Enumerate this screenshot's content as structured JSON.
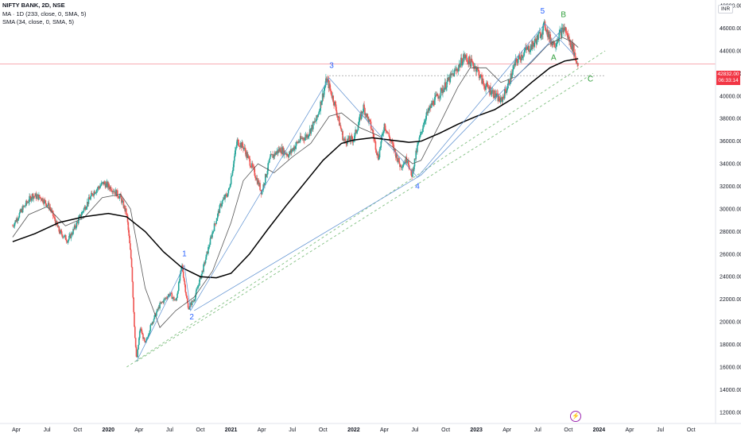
{
  "legend": {
    "symbol": "NIFTY BANK, 2D, NSE",
    "ma_label": "MA · 1D (233, close, 0, SMA, 5)",
    "sma_label": "SMA (34, close, 0, SMA, 5)"
  },
  "currency_label": "INR",
  "last_price": {
    "value": "42832.00",
    "countdown": "06:33:14",
    "color": "#f23645"
  },
  "colors": {
    "up": "#26a69a",
    "down": "#ef5350",
    "ma233": "#000000",
    "sma34": "#555555",
    "wave": "#5b8fd0",
    "trend": "#7fbf7f"
  },
  "chart_data": {
    "type": "candlestick",
    "x_range": [
      "2019-03",
      "2024-11"
    ],
    "ylim": [
      11000,
      48500
    ],
    "y_ticks": [
      12000,
      14000,
      16000,
      18000,
      20000,
      22000,
      24000,
      26000,
      28000,
      30000,
      32000,
      34000,
      36000,
      38000,
      40000,
      42000,
      44000,
      46000,
      48000
    ],
    "y_tick_labels": [
      "12000.00",
      "14000.00",
      "16000.00",
      "18000.00",
      "20000.00",
      "22000.00",
      "24000.00",
      "26000.00",
      "28000.00",
      "30000.00",
      "32000.00",
      "34000.00",
      "36000.00",
      "38000.00",
      "40000.00",
      "42000.00",
      "44000.00",
      "46000.00",
      "48000.00"
    ],
    "x_ticks": [
      {
        "label": "Apr",
        "t": 2019.25,
        "bold": false
      },
      {
        "label": "Jul",
        "t": 2019.5,
        "bold": false
      },
      {
        "label": "Oct",
        "t": 2019.75,
        "bold": false
      },
      {
        "label": "2020",
        "t": 2020.0,
        "bold": true
      },
      {
        "label": "Apr",
        "t": 2020.25,
        "bold": false
      },
      {
        "label": "Jul",
        "t": 2020.5,
        "bold": false
      },
      {
        "label": "Oct",
        "t": 2020.75,
        "bold": false
      },
      {
        "label": "2021",
        "t": 2021.0,
        "bold": true
      },
      {
        "label": "Apr",
        "t": 2021.25,
        "bold": false
      },
      {
        "label": "Jul",
        "t": 2021.5,
        "bold": false
      },
      {
        "label": "Oct",
        "t": 2021.75,
        "bold": false
      },
      {
        "label": "2022",
        "t": 2022.0,
        "bold": true
      },
      {
        "label": "Apr",
        "t": 2022.25,
        "bold": false
      },
      {
        "label": "Jul",
        "t": 2022.5,
        "bold": false
      },
      {
        "label": "Oct",
        "t": 2022.75,
        "bold": false
      },
      {
        "label": "2023",
        "t": 2023.0,
        "bold": true
      },
      {
        "label": "Apr",
        "t": 2023.25,
        "bold": false
      },
      {
        "label": "Jul",
        "t": 2023.5,
        "bold": false
      },
      {
        "label": "Oct",
        "t": 2023.75,
        "bold": false
      },
      {
        "label": "2024",
        "t": 2024.0,
        "bold": true
      },
      {
        "label": "Apr",
        "t": 2024.25,
        "bold": false
      },
      {
        "label": "Jul",
        "t": 2024.5,
        "bold": false
      },
      {
        "label": "Oct",
        "t": 2024.75,
        "bold": false
      }
    ],
    "price_path": [
      [
        2019.22,
        28500
      ],
      [
        2019.3,
        30000
      ],
      [
        2019.38,
        31200
      ],
      [
        2019.45,
        31000
      ],
      [
        2019.52,
        30200
      ],
      [
        2019.6,
        28000
      ],
      [
        2019.67,
        27200
      ],
      [
        2019.72,
        28200
      ],
      [
        2019.8,
        30000
      ],
      [
        2019.88,
        31500
      ],
      [
        2019.96,
        32300
      ],
      [
        2020.03,
        31800
      ],
      [
        2020.1,
        31000
      ],
      [
        2020.15,
        29500
      ],
      [
        2020.19,
        25000
      ],
      [
        2020.21,
        20000
      ],
      [
        2020.23,
        16500
      ],
      [
        2020.26,
        19500
      ],
      [
        2020.3,
        18000
      ],
      [
        2020.35,
        19800
      ],
      [
        2020.42,
        21500
      ],
      [
        2020.5,
        22500
      ],
      [
        2020.55,
        21800
      ],
      [
        2020.6,
        25000
      ],
      [
        2020.65,
        21200
      ],
      [
        2020.7,
        22000
      ],
      [
        2020.78,
        25000
      ],
      [
        2020.85,
        28000
      ],
      [
        2020.92,
        30500
      ],
      [
        2020.98,
        31500
      ],
      [
        2021.05,
        36000
      ],
      [
        2021.1,
        35500
      ],
      [
        2021.18,
        33500
      ],
      [
        2021.25,
        31500
      ],
      [
        2021.32,
        34500
      ],
      [
        2021.4,
        35300
      ],
      [
        2021.47,
        34800
      ],
      [
        2021.55,
        36000
      ],
      [
        2021.62,
        36500
      ],
      [
        2021.7,
        38000
      ],
      [
        2021.78,
        41500
      ],
      [
        2021.84,
        39500
      ],
      [
        2021.92,
        36000
      ],
      [
        2022.0,
        36200
      ],
      [
        2022.08,
        39000
      ],
      [
        2022.15,
        37000
      ],
      [
        2022.2,
        34500
      ],
      [
        2022.25,
        37500
      ],
      [
        2022.32,
        35500
      ],
      [
        2022.38,
        33800
      ],
      [
        2022.44,
        34500
      ],
      [
        2022.47,
        32800
      ],
      [
        2022.52,
        35500
      ],
      [
        2022.58,
        38000
      ],
      [
        2022.65,
        39500
      ],
      [
        2022.72,
        40500
      ],
      [
        2022.78,
        41500
      ],
      [
        2022.85,
        42500
      ],
      [
        2022.9,
        43500
      ],
      [
        2022.95,
        43000
      ],
      [
        2023.0,
        42500
      ],
      [
        2023.06,
        41000
      ],
      [
        2023.12,
        40500
      ],
      [
        2023.2,
        39500
      ],
      [
        2023.26,
        41000
      ],
      [
        2023.32,
        43000
      ],
      [
        2023.4,
        44000
      ],
      [
        2023.46,
        44500
      ],
      [
        2023.52,
        45500
      ],
      [
        2023.56,
        46300
      ],
      [
        2023.6,
        45000
      ],
      [
        2023.64,
        44600
      ],
      [
        2023.68,
        45500
      ],
      [
        2023.72,
        46000
      ],
      [
        2023.76,
        44800
      ],
      [
        2023.79,
        44200
      ],
      [
        2023.81,
        43200
      ],
      [
        2023.83,
        42832
      ]
    ],
    "ma233_path": [
      [
        2019.22,
        27100
      ],
      [
        2019.4,
        27800
      ],
      [
        2019.6,
        28800
      ],
      [
        2019.8,
        29300
      ],
      [
        2020.0,
        29600
      ],
      [
        2020.15,
        29300
      ],
      [
        2020.3,
        28000
      ],
      [
        2020.45,
        26200
      ],
      [
        2020.6,
        24800
      ],
      [
        2020.75,
        24000
      ],
      [
        2020.88,
        23900
      ],
      [
        2021.0,
        24300
      ],
      [
        2021.15,
        26000
      ],
      [
        2021.3,
        28200
      ],
      [
        2021.45,
        30300
      ],
      [
        2021.6,
        32300
      ],
      [
        2021.75,
        34300
      ],
      [
        2021.9,
        35800
      ],
      [
        2022.0,
        36100
      ],
      [
        2022.15,
        36300
      ],
      [
        2022.3,
        36100
      ],
      [
        2022.45,
        35900
      ],
      [
        2022.55,
        36000
      ],
      [
        2022.7,
        36700
      ],
      [
        2022.85,
        37500
      ],
      [
        2023.0,
        38200
      ],
      [
        2023.15,
        38800
      ],
      [
        2023.3,
        39800
      ],
      [
        2023.45,
        41200
      ],
      [
        2023.6,
        42500
      ],
      [
        2023.72,
        43100
      ],
      [
        2023.83,
        43300
      ]
    ],
    "sma34_path": [
      [
        2019.22,
        27500
      ],
      [
        2019.35,
        29500
      ],
      [
        2019.5,
        30200
      ],
      [
        2019.65,
        28500
      ],
      [
        2019.8,
        29200
      ],
      [
        2019.95,
        31000
      ],
      [
        2020.1,
        31300
      ],
      [
        2020.18,
        30000
      ],
      [
        2020.3,
        23000
      ],
      [
        2020.42,
        19500
      ],
      [
        2020.55,
        21000
      ],
      [
        2020.7,
        22200
      ],
      [
        2020.85,
        24500
      ],
      [
        2021.0,
        28800
      ],
      [
        2021.1,
        32500
      ],
      [
        2021.22,
        34000
      ],
      [
        2021.35,
        33200
      ],
      [
        2021.5,
        34600
      ],
      [
        2021.65,
        35800
      ],
      [
        2021.8,
        38200
      ],
      [
        2021.9,
        38500
      ],
      [
        2022.05,
        37200
      ],
      [
        2022.2,
        36500
      ],
      [
        2022.35,
        35200
      ],
      [
        2022.48,
        34000
      ],
      [
        2022.55,
        34300
      ],
      [
        2022.7,
        37500
      ],
      [
        2022.85,
        40800
      ],
      [
        2022.95,
        42500
      ],
      [
        2023.08,
        42500
      ],
      [
        2023.2,
        41200
      ],
      [
        2023.32,
        41700
      ],
      [
        2023.45,
        43000
      ],
      [
        2023.58,
        44500
      ],
      [
        2023.7,
        45200
      ],
      [
        2023.78,
        44800
      ],
      [
        2023.83,
        44300
      ]
    ],
    "wave_lines": [
      [
        [
          2020.23,
          16500
        ],
        [
          2020.62,
          25000
        ],
        [
          2020.67,
          21000
        ],
        [
          2021.8,
          41600
        ],
        [
          2022.52,
          32800
        ],
        [
          2023.56,
          46400
        ],
        [
          2023.8,
          43600
        ]
      ],
      [
        [
          2020.7,
          21000
        ],
        [
          2022.55,
          33000
        ],
        [
          2023.7,
          45900
        ]
      ]
    ],
    "trend_lines": [
      [
        [
          2020.15,
          16000
        ],
        [
          2024.05,
          44000
        ]
      ],
      [
        [
          2020.23,
          16500
        ],
        [
          2023.95,
          42000
        ]
      ]
    ],
    "dotted_level": {
      "y": 41800,
      "x_from": 2021.8,
      "x_to": 2024.05
    },
    "wave_labels": [
      {
        "text": "1",
        "t": 2020.62,
        "y": 25800,
        "color": "blue"
      },
      {
        "text": "2",
        "t": 2020.68,
        "y": 20200,
        "color": "blue"
      },
      {
        "text": "3",
        "t": 2021.82,
        "y": 42500,
        "color": "blue"
      },
      {
        "text": "4",
        "t": 2022.52,
        "y": 31800,
        "color": "blue"
      },
      {
        "text": "5",
        "t": 2023.54,
        "y": 47300,
        "color": "blue"
      },
      {
        "text": "A",
        "t": 2023.63,
        "y": 43200,
        "color": "green"
      },
      {
        "text": "B",
        "t": 2023.71,
        "y": 47000,
        "color": "green"
      },
      {
        "text": "C",
        "t": 2023.93,
        "y": 41300,
        "color": "green"
      }
    ]
  }
}
